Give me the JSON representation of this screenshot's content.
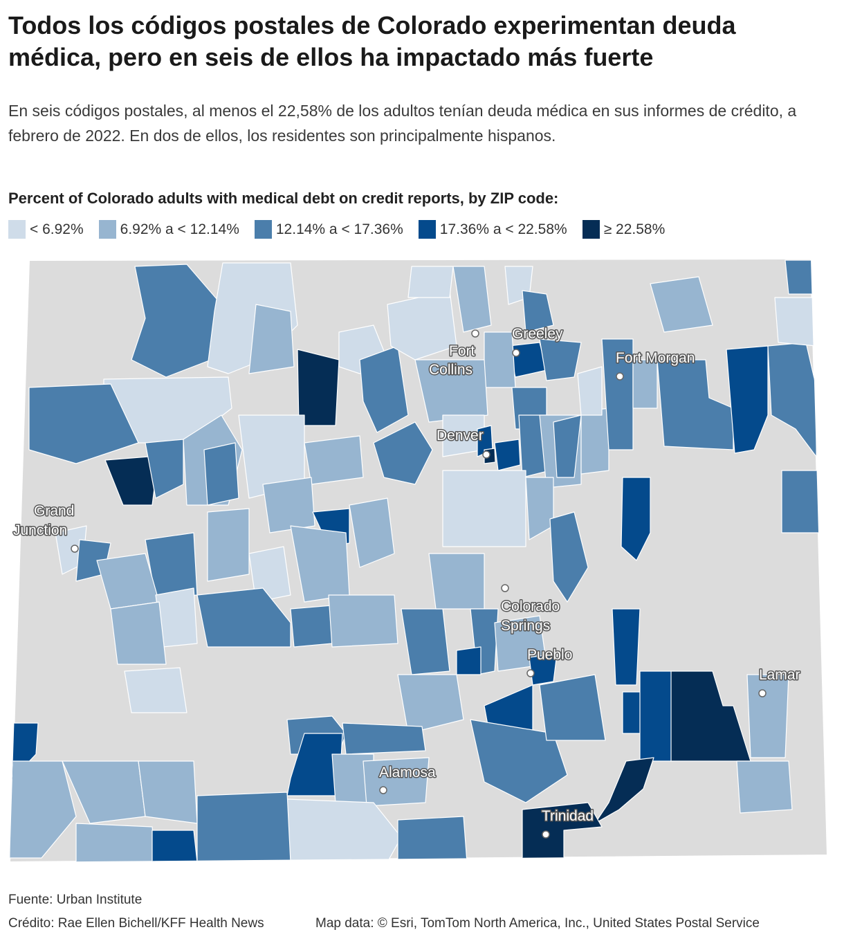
{
  "header": {
    "title": "Todos los códigos postales de Colorado experimentan deuda médica, pero en seis de ellos ha impactado más fuerte",
    "subtitle": "En seis códigos postales, al menos el 22,58% de los adultos tenían deuda médica en sus informes de crédito, a febrero de 2022. En dos de ellos, los residentes son principalmente hispanos."
  },
  "legend": {
    "title": "Percent of Colorado adults with medical debt on credit reports, by ZIP code:",
    "items": [
      {
        "label": "< 6.92%",
        "color": "#cfdce9"
      },
      {
        "label": "6.92% a < 12.14%",
        "color": "#97b5d0"
      },
      {
        "label": "12.14% a < 17.36%",
        "color": "#4b7eab"
      },
      {
        "label": "17.36% a < 22.58%",
        "color": "#044a8c"
      },
      {
        "label": "≥ 22.58%",
        "color": "#052d55"
      }
    ]
  },
  "map": {
    "no_data_color": "#dcdcdc",
    "cities": {
      "greeley": "Greeley",
      "fort_collins_1": "Fort",
      "fort_collins_2": "Collins",
      "fort_morgan": "Fort Morgan",
      "denver": "Denver",
      "grand_junction_1": "Grand",
      "grand_junction_2": "Junction",
      "colorado_springs_1": "Colorado",
      "colorado_springs_2": "Springs",
      "pueblo": "Pueblo",
      "lamar": "Lamar",
      "alamosa": "Alamosa",
      "trinidad": "Trinidad"
    }
  },
  "footer": {
    "source": "Fuente: Urban Institute",
    "credit": "Crédito: Rae Ellen Bichell/KFF Health News",
    "map_data": "Map data: © Esri, TomTom North America, Inc., United States Postal Service"
  }
}
